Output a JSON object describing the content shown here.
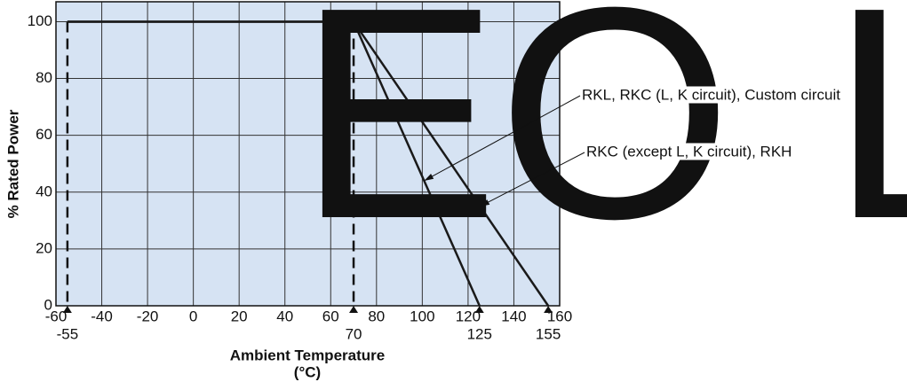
{
  "chart_data": {
    "type": "line",
    "ylabel": "% Rated Power",
    "xlabel": [
      "Ambient Temperature",
      "(°C)"
    ],
    "xlim": [
      -60,
      160
    ],
    "ylim": [
      0,
      107
    ],
    "xticks": [
      -60,
      -40,
      -20,
      0,
      20,
      40,
      60,
      80,
      100,
      120,
      140,
      160
    ],
    "yticks": [
      0,
      20,
      40,
      60,
      80,
      100
    ],
    "x_markers": [
      -55,
      70,
      125,
      155
    ],
    "grid": true,
    "background": "#d6e3f3",
    "series": [
      {
        "name": "RKL, RKC (L, K circuit), Custom circuit",
        "color": "#1a1a1a",
        "x": [
          -55,
          70,
          125
        ],
        "values": [
          100,
          100,
          0
        ],
        "label_point": 1
      },
      {
        "name": "RKC (except L, K circuit), RKH",
        "color": "#1a1a1a",
        "x": [
          -55,
          70,
          155
        ],
        "values": [
          100,
          100,
          0
        ],
        "label_point": 1
      }
    ],
    "watermark": [
      "E",
      "O",
      "L"
    ]
  }
}
